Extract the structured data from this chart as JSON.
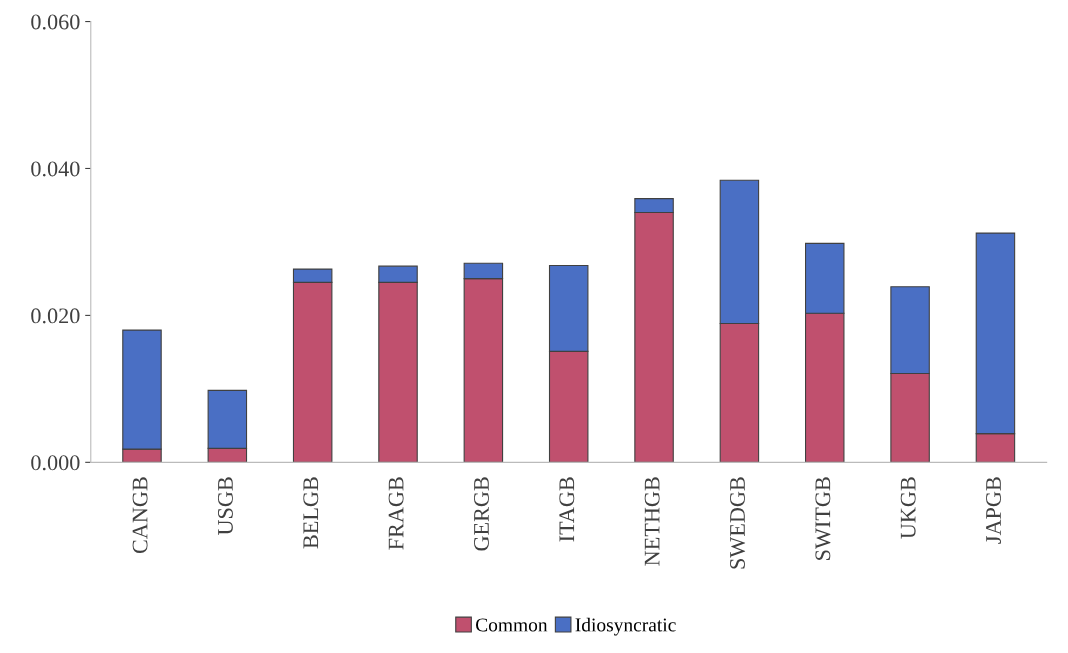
{
  "chart_data": {
    "type": "bar",
    "stacked": true,
    "categories": [
      "CANGB",
      "USGB",
      "BELGB",
      "FRAGB",
      "GERGB",
      "ITAGB",
      "NETHGB",
      "SWEDGB",
      "SWITGB",
      "UKGB",
      "JAPGB"
    ],
    "series": [
      {
        "name": "Common",
        "color": "#c0506e",
        "values": [
          0.0018,
          0.0019,
          0.0245,
          0.0245,
          0.025,
          0.0151,
          0.034,
          0.0189,
          0.0203,
          0.0121,
          0.0039
        ]
      },
      {
        "name": "Idiosyncratic",
        "color": "#4a6fc4",
        "values": [
          0.0162,
          0.0079,
          0.0018,
          0.0022,
          0.0021,
          0.0117,
          0.0019,
          0.0195,
          0.0095,
          0.0118,
          0.0273
        ]
      }
    ],
    "ylim": [
      0,
      0.06
    ],
    "yticks": [
      {
        "value": 0,
        "label": "0.000"
      },
      {
        "value": 0.02,
        "label": "0.020"
      },
      {
        "value": 0.04,
        "label": "0.040"
      },
      {
        "value": 0.06,
        "label": "0.060"
      }
    ],
    "grid": false,
    "legend": "bottom"
  }
}
